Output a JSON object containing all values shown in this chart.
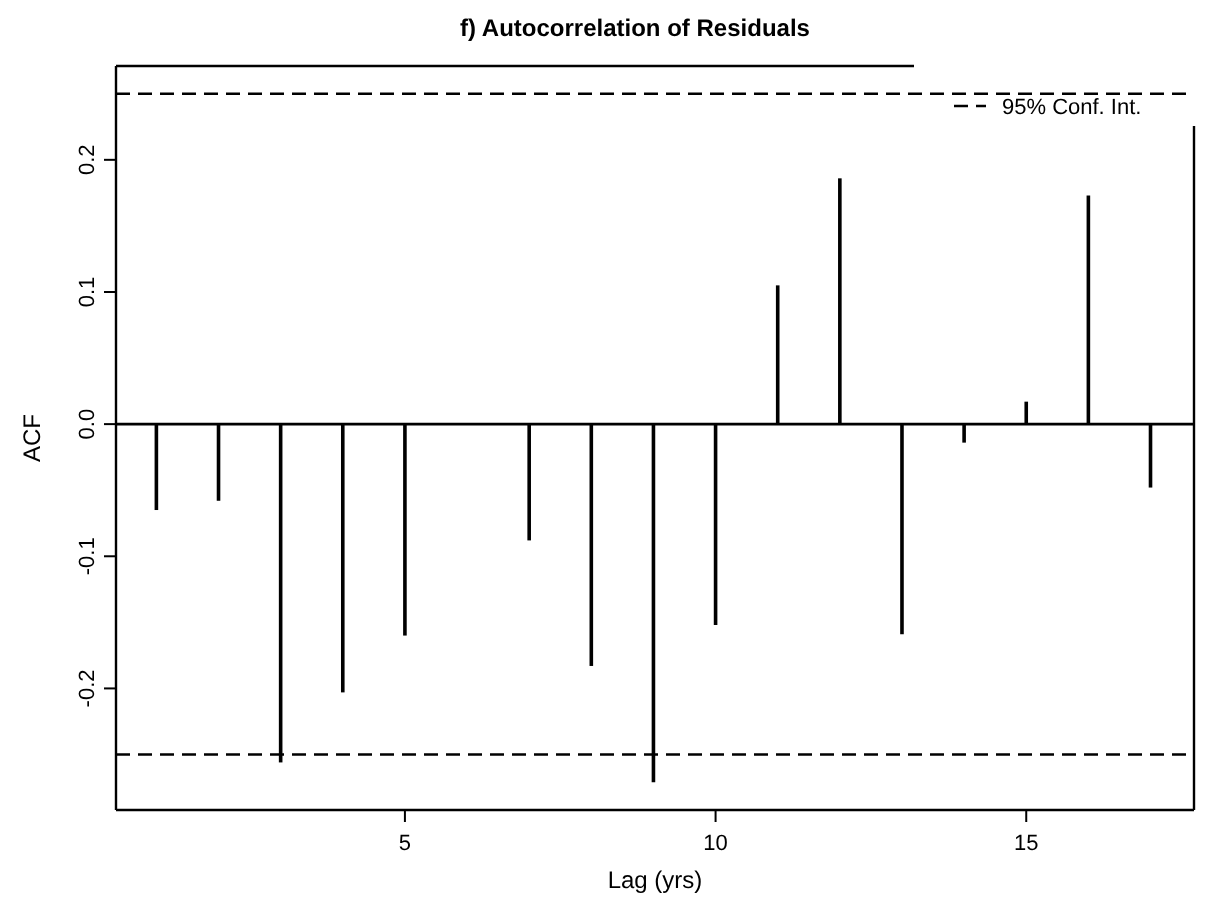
{
  "chart_data": {
    "type": "bar",
    "title": "f) Autocorrelation of Residuals",
    "xlabel": "Lag (yrs)",
    "ylabel": "ACF",
    "x": [
      1,
      2,
      3,
      4,
      5,
      6,
      7,
      8,
      9,
      10,
      11,
      12,
      13,
      14,
      15,
      16,
      17
    ],
    "values": [
      -0.065,
      -0.058,
      -0.256,
      -0.203,
      -0.16,
      null,
      -0.088,
      -0.183,
      -0.271,
      -0.152,
      0.105,
      0.186,
      -0.159,
      -0.014,
      0.017,
      0.173,
      -0.048
    ],
    "color": "#000000",
    "xlim": [
      0.35,
      17.7
    ],
    "xticks": [
      5,
      10,
      15
    ],
    "ylim": [
      -0.292,
      0.271
    ],
    "yticks": [
      {
        "value": -0.2,
        "label": "-0.2"
      },
      {
        "value": -0.1,
        "label": "-0.1"
      },
      {
        "value": 0,
        "label": "0.0"
      },
      {
        "value": 0.1,
        "label": "0.1"
      },
      {
        "value": 0.2,
        "label": "0.2"
      }
    ],
    "ref_lines": [
      {
        "axis": "y",
        "value": 0.25,
        "label": "95% Conf. Int.",
        "line_style": "dashed",
        "color": "#000000"
      },
      {
        "axis": "y",
        "value": -0.25,
        "line_style": "dashed",
        "color": "#000000"
      },
      {
        "axis": "y",
        "value": 0,
        "line_style": "solid",
        "color": "#000000"
      }
    ],
    "legend": "top right",
    "grid": false
  }
}
